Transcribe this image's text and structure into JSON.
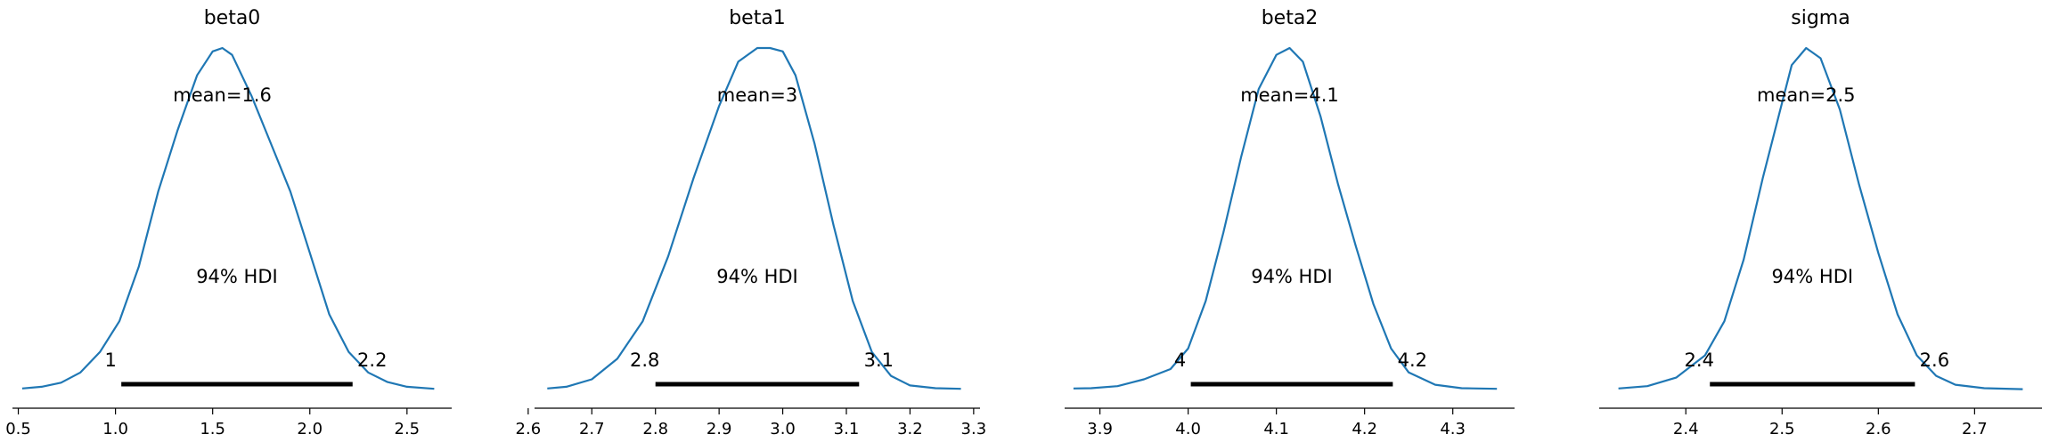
{
  "chart_data": [
    {
      "type": "density",
      "title": "beta0",
      "mean_label": "mean=1.6",
      "hdi_label": "94% HDI",
      "hdi": [
        1.03,
        2.22
      ],
      "hdi_low_label": "1",
      "hdi_high_label": "2.2",
      "xlim": [
        0.47,
        2.73
      ],
      "xticks": [
        0.5,
        1.0,
        1.5,
        2.0,
        2.5
      ],
      "xtick_labels": [
        "0.5",
        "1.0",
        "1.5",
        "2.0",
        "2.5"
      ],
      "x": [
        0.52,
        0.62,
        0.72,
        0.82,
        0.92,
        1.02,
        1.12,
        1.22,
        1.32,
        1.42,
        1.5,
        1.55,
        1.6,
        1.7,
        1.8,
        1.9,
        2.0,
        2.1,
        2.2,
        2.3,
        2.4,
        2.5,
        2.64
      ],
      "y": [
        0.003,
        0.008,
        0.02,
        0.05,
        0.11,
        0.2,
        0.36,
        0.58,
        0.76,
        0.92,
        0.99,
        1.0,
        0.98,
        0.86,
        0.72,
        0.58,
        0.4,
        0.22,
        0.11,
        0.05,
        0.022,
        0.008,
        0.002
      ]
    },
    {
      "type": "density",
      "title": "beta1",
      "mean_label": "mean=3",
      "hdi_label": "94% HDI",
      "hdi": [
        2.8,
        3.12
      ],
      "hdi_low_label": "2.8",
      "hdi_high_label": "3.1",
      "xlim": [
        2.61,
        3.31
      ],
      "xticks": [
        2.6,
        2.7,
        2.8,
        2.9,
        3.0,
        3.1,
        3.2,
        3.3
      ],
      "xtick_labels": [
        "2.6",
        "2.7",
        "2.8",
        "2.9",
        "3.0",
        "3.1",
        "3.2",
        "3.3"
      ],
      "x": [
        2.63,
        2.66,
        2.7,
        2.74,
        2.78,
        2.82,
        2.86,
        2.9,
        2.93,
        2.96,
        2.98,
        3.0,
        3.02,
        3.05,
        3.08,
        3.11,
        3.14,
        3.17,
        3.2,
        3.24,
        3.28
      ],
      "y": [
        0.003,
        0.008,
        0.03,
        0.09,
        0.2,
        0.39,
        0.62,
        0.83,
        0.96,
        1.0,
        1.0,
        0.99,
        0.92,
        0.72,
        0.48,
        0.26,
        0.11,
        0.04,
        0.012,
        0.004,
        0.002
      ]
    },
    {
      "type": "density",
      "title": "beta2",
      "mean_label": "mean=4.1",
      "hdi_label": "94% HDI",
      "hdi": [
        4.003,
        4.232
      ],
      "hdi_low_label": "4",
      "hdi_high_label": "4.2",
      "xlim": [
        3.86,
        4.37
      ],
      "xticks": [
        3.9,
        4.0,
        4.1,
        4.2,
        4.3
      ],
      "xtick_labels": [
        "3.9",
        "4.0",
        "4.1",
        "4.2",
        "4.3"
      ],
      "x": [
        3.87,
        3.89,
        3.92,
        3.95,
        3.98,
        4.0,
        4.02,
        4.04,
        4.06,
        4.08,
        4.1,
        4.115,
        4.13,
        4.15,
        4.17,
        4.19,
        4.21,
        4.23,
        4.25,
        4.28,
        4.31,
        4.35
      ],
      "y": [
        0.003,
        0.004,
        0.01,
        0.03,
        0.06,
        0.12,
        0.26,
        0.46,
        0.68,
        0.88,
        0.98,
        1.0,
        0.96,
        0.8,
        0.6,
        0.42,
        0.25,
        0.12,
        0.05,
        0.014,
        0.004,
        0.002
      ]
    },
    {
      "type": "density",
      "title": "sigma",
      "mean_label": "mean=2.5",
      "hdi_label": "94% HDI",
      "hdi": [
        2.425,
        2.638
      ],
      "hdi_low_label": "2.4",
      "hdi_high_label": "2.6",
      "xlim": [
        2.31,
        2.77
      ],
      "xticks": [
        2.4,
        2.5,
        2.6,
        2.7
      ],
      "xtick_labels": [
        "2.4",
        "2.5",
        "2.6",
        "2.7"
      ],
      "x": [
        2.33,
        2.36,
        2.39,
        2.42,
        2.44,
        2.46,
        2.48,
        2.5,
        2.51,
        2.525,
        2.54,
        2.56,
        2.58,
        2.6,
        2.62,
        2.64,
        2.66,
        2.68,
        2.71,
        2.75
      ],
      "y": [
        0.003,
        0.01,
        0.035,
        0.1,
        0.2,
        0.38,
        0.62,
        0.84,
        0.95,
        1.0,
        0.97,
        0.82,
        0.6,
        0.4,
        0.22,
        0.1,
        0.04,
        0.014,
        0.004,
        0.001
      ]
    }
  ]
}
